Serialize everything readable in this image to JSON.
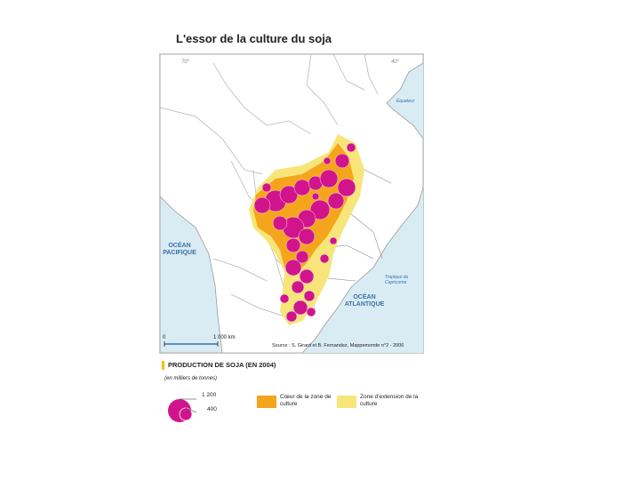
{
  "title": "L'essor de la culture du soja",
  "map": {
    "grid_70": "70°",
    "grid_40": "40°",
    "equator": "Équateur",
    "tropic": "Tropique du Capricorne",
    "ocean_pacific": "OCÉAN PACIFIQUE",
    "ocean_atlantic": "OCÉAN ATLANTIQUE",
    "scale_zero": "0",
    "scale_km": "1 000 km",
    "source": "Source : S. Girard et B. Fernandez, Mappemonde n°2 - 2006",
    "colors": {
      "ocean": "#d9ecf4",
      "land": "#ffffff",
      "border": "#9a9a9a",
      "core_zone": "#f5a51c",
      "extension_zone": "#f7e57a",
      "production_circle": "#d2148c"
    }
  },
  "legend": {
    "title": "PRODUCTION DE SOJA (EN 2004)",
    "unit": "(en milliers de tonnes)",
    "circle_large": "1 200",
    "circle_small": "400",
    "core_zone": "Cœur de la zone de culture",
    "extension_zone": "Zone d'extension de la culture"
  }
}
